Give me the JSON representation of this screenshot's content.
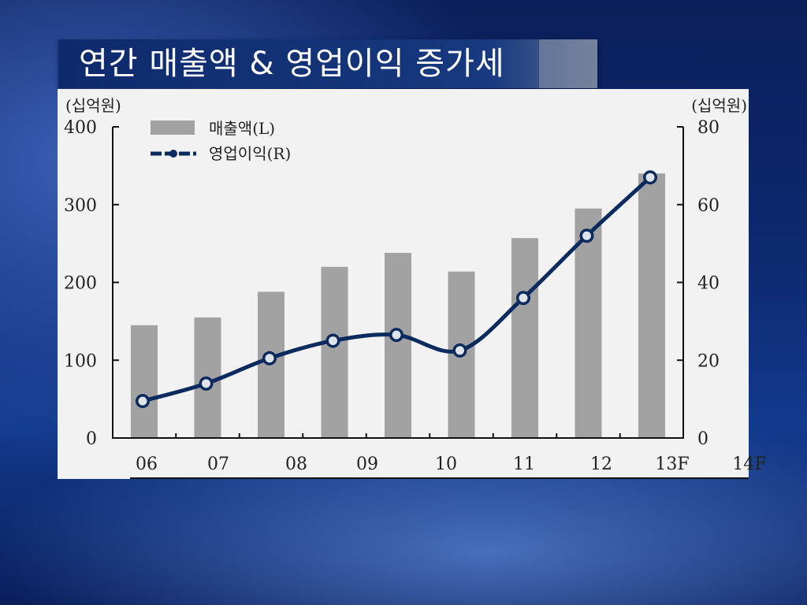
{
  "slide": {
    "title": "연간 매출액 & 영업이익 증가세"
  },
  "chart_data": {
    "type": "bar",
    "categories": [
      "06",
      "07",
      "08",
      "09",
      "10",
      "11",
      "12",
      "13F",
      "14F"
    ],
    "series": [
      {
        "name": "매출액(L)",
        "type": "bar",
        "axis": "left",
        "values": [
          145,
          155,
          188,
          220,
          238,
          214,
          257,
          295,
          340
        ]
      },
      {
        "name": "영업이익(R)",
        "type": "line",
        "axis": "right",
        "values": [
          9.5,
          14,
          20.5,
          25,
          26.5,
          22.5,
          36,
          52,
          67
        ]
      }
    ],
    "left_axis": {
      "unit": "(십억원)",
      "ticks": [
        0,
        100,
        200,
        300,
        400
      ],
      "range": [
        0,
        400
      ]
    },
    "right_axis": {
      "unit": "(십억원)",
      "ticks": [
        0,
        20,
        40,
        60,
        80
      ],
      "range": [
        0,
        80
      ]
    },
    "bar_color": "#a2a2a2",
    "line_color": "#0b2a5e",
    "legend_position": "top-left",
    "grid": false
  }
}
